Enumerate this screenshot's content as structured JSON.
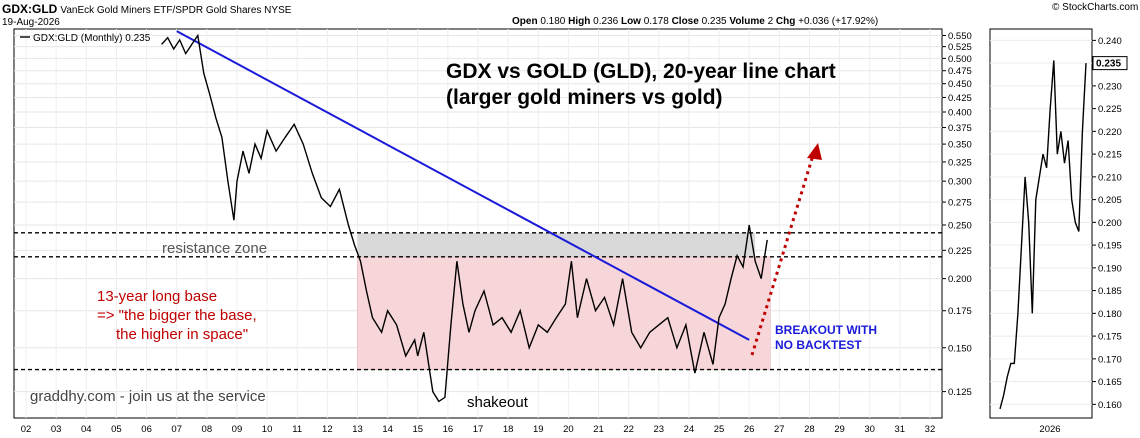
{
  "header": {
    "symbol": "GDX:GLD",
    "description": "VanEck Gold Miners ETF/SPDR Gold Shares  NYSE",
    "date": "19-Aug-2026",
    "source": "© StockCharts.com",
    "ohlc": {
      "open_label": "Open",
      "open": "0.180",
      "high_label": "High",
      "high": "0.236",
      "low_label": "Low",
      "low": "0.178",
      "close_label": "Close",
      "close": "0.235",
      "volume_label": "Volume",
      "volume": "2",
      "chg_label": "Chg",
      "chg": "+0.036 (+17.92%)"
    }
  },
  "legend": {
    "label": "GDX:GLD (Monthly) 0.235"
  },
  "annotations": {
    "title_line1": "GDX vs GOLD (GLD), 20-year line chart",
    "title_line2": "(larger gold miners vs gold)",
    "resistance": "resistance zone",
    "base_line1": "13-year long base",
    "base_line2": "=>  \"the bigger the base,",
    "base_line3": "the higher in space\"",
    "breakout_line1": "BREAKOUT WITH",
    "breakout_line2": "NO BACKTEST",
    "shakeout": "shakeout",
    "watermark": "graddhy.com - join us at the service"
  },
  "colors": {
    "price_line": "#000000",
    "trendline": "#1a1ad9",
    "base_fill": "#f7d6d9",
    "resistance_fill": "#d9d9d9",
    "red_text": "#c00000",
    "blue_text": "#1a1ad9",
    "arrow": "#c00000"
  },
  "chart_data": [
    {
      "type": "line",
      "scale": "log",
      "series": [
        {
          "name": "GDX:GLD (Monthly)",
          "x": [
            2006.5,
            2006.7,
            2006.9,
            2007.1,
            2007.3,
            2007.5,
            2007.7,
            2007.9,
            2008.1,
            2008.3,
            2008.5,
            2008.7,
            2008.9,
            2009.0,
            2009.2,
            2009.4,
            2009.6,
            2009.8,
            2010.0,
            2010.3,
            2010.6,
            2010.9,
            2011.2,
            2011.5,
            2011.8,
            2012.1,
            2012.4,
            2012.7,
            2012.9,
            2013.1,
            2013.3,
            2013.5,
            2013.8,
            2014.0,
            2014.3,
            2014.6,
            2014.9,
            2015.0,
            2015.2,
            2015.5,
            2015.7,
            2015.9,
            2016.1,
            2016.3,
            2016.5,
            2016.7,
            2016.9,
            2017.2,
            2017.5,
            2017.8,
            2018.1,
            2018.4,
            2018.7,
            2019.0,
            2019.3,
            2019.6,
            2019.9,
            2020.1,
            2020.3,
            2020.6,
            2020.9,
            2021.2,
            2021.5,
            2021.8,
            2022.1,
            2022.4,
            2022.7,
            2023.0,
            2023.3,
            2023.6,
            2023.9,
            2024.2,
            2024.5,
            2024.8,
            2025.0,
            2025.2,
            2025.4,
            2025.6,
            2025.8,
            2026.0,
            2026.2,
            2026.4,
            2026.6
          ],
          "values": [
            0.53,
            0.545,
            0.52,
            0.54,
            0.51,
            0.53,
            0.55,
            0.47,
            0.43,
            0.39,
            0.36,
            0.3,
            0.255,
            0.3,
            0.34,
            0.31,
            0.35,
            0.33,
            0.37,
            0.34,
            0.36,
            0.38,
            0.35,
            0.31,
            0.28,
            0.27,
            0.29,
            0.25,
            0.23,
            0.215,
            0.19,
            0.17,
            0.16,
            0.175,
            0.165,
            0.145,
            0.155,
            0.145,
            0.16,
            0.125,
            0.12,
            0.122,
            0.165,
            0.215,
            0.18,
            0.16,
            0.175,
            0.19,
            0.165,
            0.17,
            0.16,
            0.175,
            0.15,
            0.165,
            0.16,
            0.17,
            0.18,
            0.215,
            0.17,
            0.2,
            0.175,
            0.185,
            0.165,
            0.2,
            0.16,
            0.15,
            0.16,
            0.165,
            0.17,
            0.15,
            0.165,
            0.135,
            0.16,
            0.14,
            0.17,
            0.18,
            0.2,
            0.22,
            0.21,
            0.25,
            0.215,
            0.2,
            0.235
          ]
        }
      ],
      "trendline": {
        "x": [
          2007.0,
          2026.0
        ],
        "values": [
          0.56,
          0.155
        ]
      },
      "resistance_zone": {
        "from": 0.219,
        "to": 0.242,
        "x_start": 2013.0,
        "x_end": 2027.0
      },
      "base_zone": {
        "from": 0.137,
        "to": 0.219,
        "x_start": 2013.0,
        "x_end": 2026.7
      },
      "x_ticks": [
        "02",
        "03",
        "04",
        "05",
        "06",
        "07",
        "08",
        "09",
        "10",
        "11",
        "12",
        "13",
        "14",
        "15",
        "16",
        "17",
        "18",
        "19",
        "20",
        "21",
        "22",
        "23",
        "24",
        "25",
        "26",
        "27",
        "28",
        "29",
        "30",
        "31",
        "32"
      ],
      "y_ticks": [
        "0.550",
        "0.525",
        "0.500",
        "0.475",
        "0.450",
        "0.425",
        "0.400",
        "0.375",
        "0.350",
        "0.325",
        "0.300",
        "0.275",
        "0.250",
        "0.225",
        "0.200",
        "0.175",
        "0.150",
        "0.125"
      ],
      "last_value": "0.235"
    },
    {
      "type": "line",
      "series": [
        {
          "name": "GDX:GLD",
          "x": [
            0,
            1,
            2,
            3,
            4,
            5,
            6,
            7,
            8,
            9,
            10,
            11,
            12,
            13,
            14,
            15,
            16,
            17,
            18,
            19,
            20,
            21,
            22,
            23,
            24
          ],
          "values": [
            0.159,
            0.162,
            0.166,
            0.169,
            0.169,
            0.18,
            0.195,
            0.21,
            0.2,
            0.18,
            0.205,
            0.21,
            0.215,
            0.212,
            0.225,
            0.2356,
            0.215,
            0.22,
            0.213,
            0.218,
            0.205,
            0.2,
            0.198,
            0.22,
            0.235
          ]
        }
      ],
      "y_ticks": [
        "0.240",
        "0.235",
        "0.230",
        "0.225",
        "0.220",
        "0.215",
        "0.210",
        "0.205",
        "0.200",
        "0.195",
        "0.190",
        "0.185",
        "0.180",
        "0.175",
        "0.170",
        "0.165",
        "0.160"
      ],
      "x_ticks": [
        "2026"
      ],
      "last_value": "0.235"
    }
  ]
}
